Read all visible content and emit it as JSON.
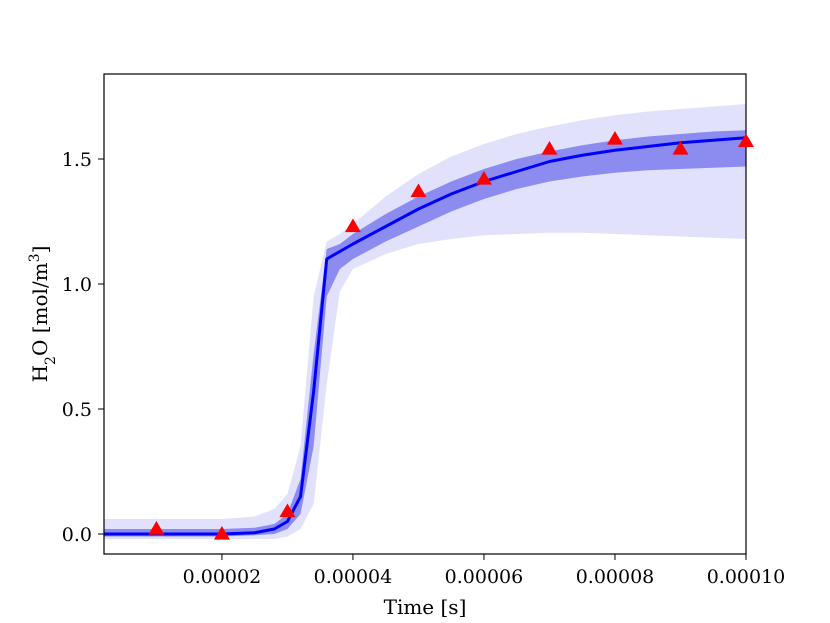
{
  "chart_data": {
    "type": "line",
    "xlabel": "Time [s]",
    "ylabel_main": "H",
    "ylabel_sub": "2",
    "ylabel_rest": "O [mol/m",
    "ylabel_sup": "3",
    "ylabel_close": "]",
    "xlim": [
      2e-06,
      0.0001
    ],
    "ylim": [
      -0.08,
      1.84
    ],
    "x_ticks": [
      2e-05,
      4e-05,
      6e-05,
      8e-05,
      0.0001
    ],
    "x_tick_labels": [
      "0.00002",
      "0.00004",
      "0.00006",
      "0.00008",
      "0.00010"
    ],
    "y_ticks": [
      0.0,
      0.5,
      1.0,
      1.5
    ],
    "y_tick_labels": [
      "0.0",
      "0.5",
      "1.0",
      "1.5"
    ],
    "grid": false,
    "colors": {
      "mean_line": "#0000ff",
      "inner_band": "#8c8cf0",
      "outer_band": "#e1e1fb",
      "markers": "#ff0000"
    },
    "series": [
      {
        "kind": "mean",
        "x": [
          2e-06,
          1e-05,
          2e-05,
          2.5e-05,
          2.8e-05,
          3e-05,
          3.2e-05,
          3.4e-05,
          3.6e-05,
          3.8e-05,
          4e-05,
          4.5e-05,
          5e-05,
          5.5e-05,
          6e-05,
          6.5e-05,
          7e-05,
          7.5e-05,
          8e-05,
          8.5e-05,
          9e-05,
          9.5e-05,
          0.0001
        ],
        "y": [
          0.0,
          0.0,
          0.0,
          0.005,
          0.02,
          0.05,
          0.15,
          0.57,
          1.1,
          1.13,
          1.16,
          1.23,
          1.3,
          1.36,
          1.41,
          1.45,
          1.49,
          1.515,
          1.535,
          1.55,
          1.565,
          1.575,
          1.585
        ]
      },
      {
        "kind": "inner_band",
        "x": [
          2e-06,
          1e-05,
          2e-05,
          2.5e-05,
          2.8e-05,
          3e-05,
          3.2e-05,
          3.4e-05,
          3.6e-05,
          3.8e-05,
          4e-05,
          4.5e-05,
          5e-05,
          5.5e-05,
          6e-05,
          6.5e-05,
          7e-05,
          7.5e-05,
          8e-05,
          8.5e-05,
          9e-05,
          9.5e-05,
          0.0001
        ],
        "lower": [
          -0.01,
          -0.01,
          -0.01,
          -0.005,
          0.0,
          0.02,
          0.08,
          0.35,
          0.95,
          1.06,
          1.1,
          1.17,
          1.23,
          1.29,
          1.34,
          1.38,
          1.41,
          1.43,
          1.445,
          1.455,
          1.46,
          1.465,
          1.47
        ],
        "upper": [
          0.02,
          0.02,
          0.02,
          0.025,
          0.04,
          0.08,
          0.22,
          0.72,
          1.14,
          1.16,
          1.2,
          1.28,
          1.35,
          1.41,
          1.46,
          1.5,
          1.53,
          1.555,
          1.575,
          1.59,
          1.6,
          1.61,
          1.615
        ]
      },
      {
        "kind": "outer_band",
        "x": [
          2e-06,
          1e-05,
          2e-05,
          2.5e-05,
          2.8e-05,
          3e-05,
          3.2e-05,
          3.4e-05,
          3.6e-05,
          3.8e-05,
          4e-05,
          4.5e-05,
          5e-05,
          5.5e-05,
          6e-05,
          6.5e-05,
          7e-05,
          7.5e-05,
          8e-05,
          8.5e-05,
          9e-05,
          9.5e-05,
          0.0001
        ],
        "lower": [
          -0.02,
          -0.02,
          -0.02,
          -0.02,
          -0.02,
          -0.01,
          0.02,
          0.12,
          0.6,
          0.97,
          1.06,
          1.12,
          1.16,
          1.18,
          1.195,
          1.2,
          1.205,
          1.205,
          1.2,
          1.195,
          1.19,
          1.185,
          1.18
        ],
        "upper": [
          0.06,
          0.06,
          0.06,
          0.07,
          0.1,
          0.16,
          0.35,
          0.95,
          1.17,
          1.2,
          1.24,
          1.35,
          1.44,
          1.51,
          1.56,
          1.6,
          1.63,
          1.655,
          1.675,
          1.69,
          1.7,
          1.71,
          1.72
        ]
      },
      {
        "kind": "observed",
        "x": [
          1e-05,
          2e-05,
          3e-05,
          4e-05,
          5e-05,
          6e-05,
          7e-05,
          8e-05,
          9e-05,
          0.0001
        ],
        "y": [
          0.02,
          0.0,
          0.09,
          1.23,
          1.37,
          1.42,
          1.54,
          1.58,
          1.54,
          1.57
        ]
      }
    ]
  }
}
